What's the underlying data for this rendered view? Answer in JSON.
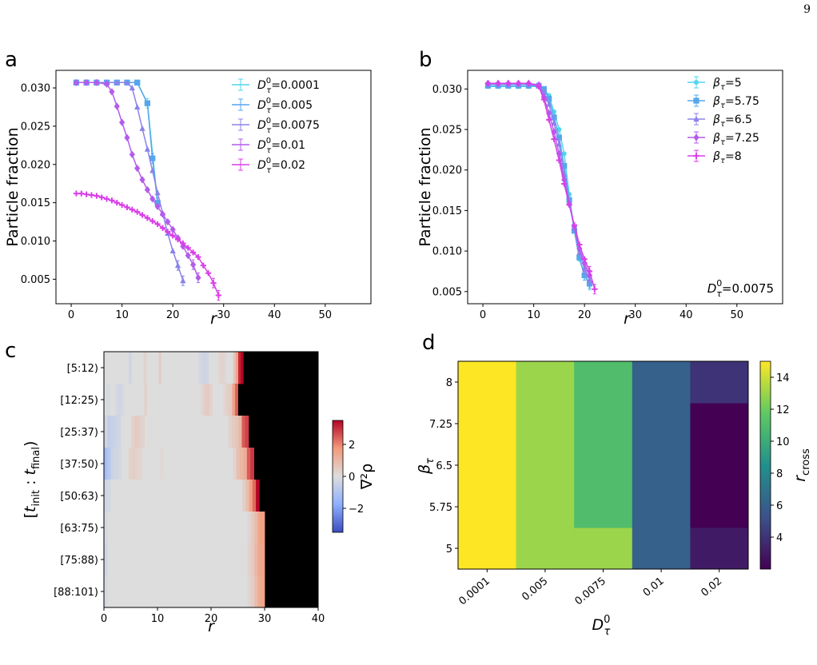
{
  "page_number": "9",
  "chart_data": [
    {
      "id": "a",
      "panel_label": "a",
      "type": "line",
      "ylabel": "Particle fraction",
      "xlabel": "r",
      "xlim": [
        -3,
        59
      ],
      "ylim": [
        0.0018,
        0.0323
      ],
      "xticks": [
        0,
        10,
        20,
        30,
        40,
        50
      ],
      "yticks": [
        0.005,
        0.01,
        0.015,
        0.02,
        0.025,
        0.03
      ],
      "ytick_labels": [
        "0.005",
        "0.010",
        "0.015",
        "0.020",
        "0.025",
        "0.030"
      ],
      "legend_position": "top-right",
      "series": [
        {
          "name": "0.0001",
          "color": "#4fd6ef",
          "marker": "square",
          "x": [
            1,
            3,
            5,
            7,
            9,
            11,
            13,
            15,
            17
          ],
          "y": [
            0.0307,
            0.0307,
            0.0307,
            0.0307,
            0.0307,
            0.0307,
            0.0307,
            0.028,
            0.015
          ]
        },
        {
          "name": "0.005",
          "color": "#57a6ec",
          "marker": "square",
          "x": [
            1,
            3,
            5,
            7,
            9,
            11,
            13,
            15,
            16,
            17
          ],
          "y": [
            0.0307,
            0.0307,
            0.0307,
            0.0307,
            0.0307,
            0.0307,
            0.0307,
            0.028,
            0.0208,
            0.015
          ]
        },
        {
          "name": "0.0075",
          "color": "#8b83ea",
          "marker": "triangle",
          "x": [
            1,
            3,
            5,
            7,
            9,
            11,
            12,
            13,
            14,
            15,
            16,
            17,
            18,
            19,
            20,
            21,
            22
          ],
          "y": [
            0.0307,
            0.0307,
            0.0307,
            0.0307,
            0.0307,
            0.0307,
            0.03,
            0.0275,
            0.0247,
            0.022,
            0.0192,
            0.0163,
            0.0136,
            0.011,
            0.0087,
            0.0068,
            0.0048
          ]
        },
        {
          "name": "0.01",
          "color": "#b35cec",
          "marker": "diamond",
          "x": [
            1,
            3,
            5,
            7,
            8,
            9,
            10,
            11,
            12,
            13,
            14,
            15,
            16,
            17,
            18,
            19,
            20,
            21,
            22,
            23,
            24,
            25
          ],
          "y": [
            0.0307,
            0.0307,
            0.0307,
            0.0305,
            0.0295,
            0.0276,
            0.0255,
            0.0235,
            0.0213,
            0.0195,
            0.018,
            0.0167,
            0.0155,
            0.0145,
            0.0135,
            0.0125,
            0.0115,
            0.0104,
            0.0093,
            0.0081,
            0.0069,
            0.0052
          ]
        },
        {
          "name": "0.02",
          "color": "#d93ee9",
          "marker": "plus",
          "x": [
            1,
            2,
            3,
            4,
            5,
            6,
            7,
            8,
            9,
            10,
            11,
            12,
            13,
            14,
            15,
            16,
            17,
            18,
            19,
            20,
            21,
            22,
            23,
            24,
            25,
            26,
            27,
            28,
            29
          ],
          "y": [
            0.0162,
            0.0162,
            0.0161,
            0.016,
            0.0159,
            0.0157,
            0.0155,
            0.0153,
            0.015,
            0.0147,
            0.0144,
            0.0141,
            0.0138,
            0.0134,
            0.013,
            0.0126,
            0.0122,
            0.0117,
            0.0112,
            0.0107,
            0.0102,
            0.0097,
            0.0091,
            0.0085,
            0.0079,
            0.0068,
            0.0058,
            0.0045,
            0.0029
          ]
        }
      ],
      "legend_prefix": "D",
      "legend_sup": "0",
      "legend_sub": "τ"
    },
    {
      "id": "b",
      "panel_label": "b",
      "type": "line",
      "ylabel": "Particle fraction",
      "xlabel": "r",
      "xlim": [
        -3,
        59
      ],
      "ylim": [
        0.0035,
        0.0323
      ],
      "xticks": [
        0,
        10,
        20,
        30,
        40,
        50
      ],
      "yticks": [
        0.005,
        0.01,
        0.015,
        0.02,
        0.025,
        0.03
      ],
      "ytick_labels": [
        "0.005",
        "0.010",
        "0.015",
        "0.020",
        "0.025",
        "0.030"
      ],
      "legend_position": "top-right",
      "legend_prefix": "β",
      "legend_sub": "τ",
      "annotation_prefix": "D",
      "annotation_sup": "0",
      "annotation_sub": "τ",
      "annotation_value": "0.0075",
      "series": [
        {
          "name": "5",
          "color": "#4fd6ef",
          "marker": "circle",
          "x": [
            1,
            3,
            5,
            7,
            9,
            11,
            12,
            13,
            14,
            15,
            16,
            17,
            18,
            19,
            20,
            21
          ],
          "y": [
            0.0303,
            0.0303,
            0.0303,
            0.0303,
            0.0303,
            0.0303,
            0.03,
            0.0292,
            0.0272,
            0.025,
            0.022,
            0.017,
            0.0125,
            0.009,
            0.007,
            0.0058
          ]
        },
        {
          "name": "5.75",
          "color": "#57a6ec",
          "marker": "square",
          "x": [
            1,
            3,
            5,
            7,
            9,
            11,
            12,
            13,
            14,
            15,
            16,
            17,
            18,
            19,
            20,
            21
          ],
          "y": [
            0.0304,
            0.0304,
            0.0304,
            0.0304,
            0.0304,
            0.0304,
            0.03,
            0.0288,
            0.0265,
            0.024,
            0.0205,
            0.0163,
            0.0125,
            0.0092,
            0.007,
            0.006
          ]
        },
        {
          "name": "6.5",
          "color": "#8b83ea",
          "marker": "triangle",
          "x": [
            1,
            3,
            5,
            7,
            9,
            11,
            12,
            13,
            14,
            15,
            16,
            17,
            18,
            19,
            20,
            21
          ],
          "y": [
            0.0306,
            0.0306,
            0.0306,
            0.0306,
            0.0306,
            0.0304,
            0.0296,
            0.0281,
            0.0258,
            0.0232,
            0.0195,
            0.016,
            0.0128,
            0.0098,
            0.0078,
            0.0064
          ]
        },
        {
          "name": "7.25",
          "color": "#b35cec",
          "marker": "diamond",
          "x": [
            1,
            3,
            5,
            7,
            9,
            11,
            12,
            13,
            14,
            15,
            16,
            17,
            18,
            19,
            20,
            21
          ],
          "y": [
            0.0307,
            0.0307,
            0.0307,
            0.0307,
            0.0307,
            0.0305,
            0.029,
            0.027,
            0.0247,
            0.022,
            0.0188,
            0.0158,
            0.013,
            0.0103,
            0.0085,
            0.007
          ]
        },
        {
          "name": "8",
          "color": "#d93ee9",
          "marker": "plus",
          "x": [
            1,
            3,
            5,
            7,
            9,
            11,
            12,
            13,
            14,
            15,
            16,
            17,
            18,
            19,
            20,
            21,
            22
          ],
          "y": [
            0.0307,
            0.0307,
            0.0307,
            0.0307,
            0.0307,
            0.0303,
            0.0287,
            0.0262,
            0.0238,
            0.0212,
            0.0183,
            0.0157,
            0.0132,
            0.0108,
            0.009,
            0.0075,
            0.0053
          ]
        }
      ]
    },
    {
      "id": "c",
      "panel_label": "c",
      "type": "heatmap",
      "xlabel": "r",
      "ylabel": "[t_init : t_final]",
      "xlim": [
        0,
        40
      ],
      "xticks": [
        0,
        10,
        20,
        30,
        40
      ],
      "rows": [
        "[5:12)",
        "[12:25)",
        "[25:37)",
        "[37:50)",
        "[50:63)",
        "[63:75)",
        "[75:88)",
        "[88:101)"
      ],
      "colorbar_label": "∇²ρ",
      "colorbar_range": [
        -3.5,
        3.5
      ],
      "colorbar_ticks": [
        -2,
        0,
        2
      ],
      "colorbar_tick_labels": [
        "−2",
        "0",
        "2"
      ],
      "background": "#000000",
      "row_extent": [
        26,
        25,
        27,
        28,
        29,
        30,
        30,
        30
      ],
      "values": [
        [
          0,
          0,
          0,
          0,
          0,
          0,
          0,
          0,
          0,
          0,
          -0.3,
          0,
          0,
          0,
          0,
          0,
          0.3,
          0,
          0,
          0,
          0,
          0,
          0.4,
          0,
          0,
          0,
          0,
          0,
          0,
          0,
          0,
          0,
          0,
          0,
          0,
          0,
          0,
          0,
          -0.2,
          -0.3,
          -0.4,
          -0.3,
          0,
          0,
          0,
          0,
          0.2,
          0.3,
          0.2,
          0,
          0,
          0,
          0.7,
          1.5,
          3.1,
          3.6
        ],
        [
          0,
          -0.2,
          0,
          0,
          -0.2,
          -0.3,
          -0.2,
          0,
          0,
          0,
          0,
          0,
          0,
          0,
          0.3,
          0,
          0,
          0,
          0,
          0,
          0,
          0,
          0,
          0,
          0,
          0,
          0,
          0,
          0,
          0,
          0,
          0,
          0,
          0,
          0.2,
          0.4,
          0.5,
          0.3,
          0,
          0,
          0,
          0,
          0.2,
          0.4,
          0.5,
          1.5,
          2.4
        ],
        [
          -0.3,
          -0.6,
          -0.5,
          -0.4,
          -0.3,
          0,
          0,
          0,
          0.3,
          0.5,
          0.4,
          0.3,
          0,
          0,
          0,
          0,
          0,
          0,
          0,
          0,
          0,
          0,
          0,
          0,
          0,
          0,
          0,
          0,
          0,
          0,
          0,
          0,
          0,
          0,
          0,
          0,
          0,
          0.3,
          0.5,
          0.6,
          1.0,
          2.5,
          2.8
        ],
        [
          -1.2,
          -0.8,
          -0.4,
          -0.3,
          -0.2,
          0,
          0,
          0.3,
          0.4,
          0.3,
          0.2,
          0,
          0,
          0,
          0,
          0,
          0.1,
          0,
          0,
          0,
          0,
          0,
          0,
          0,
          0,
          0,
          0,
          0,
          0,
          0,
          0,
          0,
          0,
          0,
          0,
          0,
          0,
          0.3,
          0.8,
          1.0,
          1.3,
          2.5,
          2.9
        ],
        [
          -0.3,
          -0.2,
          0,
          0,
          0,
          0,
          0,
          0,
          0,
          0,
          0,
          0,
          0,
          0,
          0,
          0,
          0,
          0,
          0,
          0,
          0,
          0,
          0,
          0,
          0,
          0,
          0,
          0,
          0,
          0,
          0,
          0,
          0,
          0,
          0,
          0,
          0,
          0,
          0,
          0,
          0,
          0.4,
          0.8,
          1.6,
          2.3,
          3.5
        ],
        [
          -0.2,
          0,
          0,
          0,
          0,
          0,
          0,
          0,
          0,
          0,
          0,
          0,
          0,
          0,
          0,
          0,
          0,
          0,
          0,
          0,
          0,
          0,
          0,
          0,
          0,
          0,
          0,
          0,
          0,
          0,
          0,
          0,
          0,
          0,
          0,
          0,
          0,
          0,
          0,
          0,
          0,
          0,
          0.2,
          0.5,
          0.9,
          1.5,
          1.6
        ],
        [
          -0.3,
          0,
          0,
          0,
          0,
          0,
          0,
          0,
          0,
          0,
          0,
          0,
          0,
          0,
          0,
          0,
          0,
          0,
          0,
          0,
          0,
          0,
          0,
          0,
          0,
          0,
          0,
          0,
          0,
          0,
          0,
          0,
          0,
          0,
          0,
          0,
          0,
          0,
          0,
          0,
          0,
          0,
          0.3,
          0.5,
          1.0,
          1.4,
          1.5
        ],
        [
          -0.2,
          0,
          0,
          0,
          0,
          0,
          0,
          0,
          0,
          0,
          0,
          0,
          0,
          0,
          0,
          0,
          0,
          0,
          0,
          0,
          0,
          0,
          0,
          0,
          0,
          0,
          0,
          0,
          0,
          0,
          0,
          0,
          0,
          0,
          0,
          0,
          0,
          0,
          0,
          0,
          0,
          0,
          0.2,
          0.4,
          0.9,
          1.3,
          1.5
        ]
      ]
    },
    {
      "id": "d",
      "panel_label": "d",
      "type": "heatmap",
      "xlabel_base": "D",
      "xlabel_sup": "0",
      "xlabel_sub": "τ",
      "ylabel_base": "β",
      "ylabel_sub": "τ",
      "x_categories": [
        "0.0001",
        "0.005",
        "0.0075",
        "0.01",
        "0.02"
      ],
      "y_categories": [
        "5",
        "5.75",
        "6.5",
        "7.25",
        "8"
      ],
      "values": [
        [
          15,
          13,
          13,
          6,
          3
        ],
        [
          15,
          13,
          11,
          6,
          2
        ],
        [
          15,
          13,
          11,
          6,
          2
        ],
        [
          15,
          13,
          11,
          6,
          2
        ],
        [
          15,
          13,
          11,
          6,
          4
        ]
      ],
      "colorbar_label_base": "r",
      "colorbar_label_sub": "cross",
      "colorbar_range": [
        2,
        15
      ],
      "colorbar_ticks": [
        4,
        6,
        8,
        10,
        12,
        14
      ]
    }
  ]
}
